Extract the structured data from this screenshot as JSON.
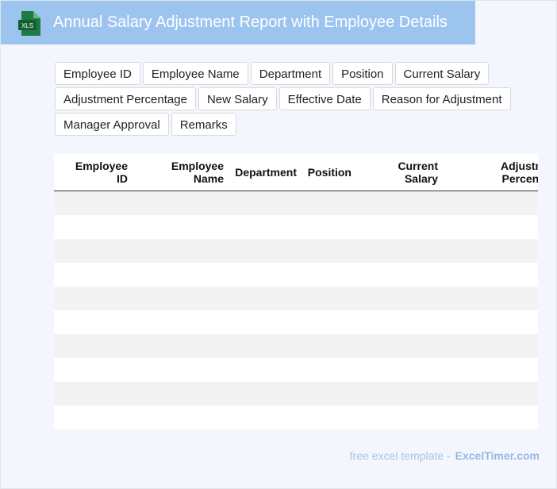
{
  "header": {
    "title": "Annual Salary Adjustment Report with Employee Details",
    "icon_label": "XLS",
    "accent_color": "#9dc4ef",
    "icon_color": "#1e7a45"
  },
  "fields": [
    "Employee ID",
    "Employee Name",
    "Department",
    "Position",
    "Current Salary",
    "Adjustment Percentage",
    "New Salary",
    "Effective Date",
    "Reason for Adjustment",
    "Manager Approval",
    "Remarks"
  ],
  "table": {
    "columns": [
      {
        "line1": "Employee",
        "line2": "ID"
      },
      {
        "line1": "Employee",
        "line2": "Name"
      },
      {
        "line1": "Department",
        "line2": ""
      },
      {
        "line1": "Position",
        "line2": ""
      },
      {
        "line1": "Current",
        "line2": "Salary"
      },
      {
        "line1": "Adjustment",
        "line2": "Percentage"
      }
    ],
    "rows": 10
  },
  "footer": {
    "text": "free excel template -",
    "brand": "ExcelTimer.com"
  }
}
